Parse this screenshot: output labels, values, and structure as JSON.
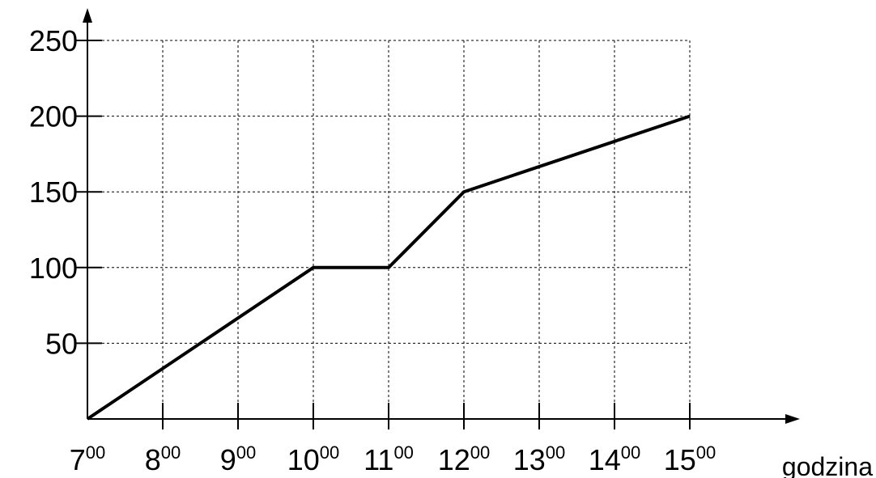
{
  "chart_data": {
    "type": "line",
    "xlabel": "godzina",
    "ylabel": "",
    "xlim": [
      7,
      15
    ],
    "ylim": [
      0,
      250
    ],
    "grid": true,
    "x_ticks": [
      {
        "value": 7,
        "hour": "7",
        "minutes": "00"
      },
      {
        "value": 8,
        "hour": "8",
        "minutes": "00"
      },
      {
        "value": 9,
        "hour": "9",
        "minutes": "00"
      },
      {
        "value": 10,
        "hour": "10",
        "minutes": "00"
      },
      {
        "value": 11,
        "hour": "11",
        "minutes": "00"
      },
      {
        "value": 12,
        "hour": "12",
        "minutes": "00"
      },
      {
        "value": 13,
        "hour": "13",
        "minutes": "00"
      },
      {
        "value": 14,
        "hour": "14",
        "minutes": "00"
      },
      {
        "value": 15,
        "hour": "15",
        "minutes": "00"
      }
    ],
    "y_ticks": [
      {
        "value": 50,
        "label": "50"
      },
      {
        "value": 100,
        "label": "100"
      },
      {
        "value": 150,
        "label": "150"
      },
      {
        "value": 200,
        "label": "200"
      },
      {
        "value": 250,
        "label": "250"
      }
    ],
    "series": [
      {
        "color": "#000000",
        "points": [
          {
            "x": 7,
            "y": 0
          },
          {
            "x": 10,
            "y": 100
          },
          {
            "x": 11,
            "y": 100
          },
          {
            "x": 12,
            "y": 150
          },
          {
            "x": 15,
            "y": 200
          }
        ]
      }
    ]
  }
}
